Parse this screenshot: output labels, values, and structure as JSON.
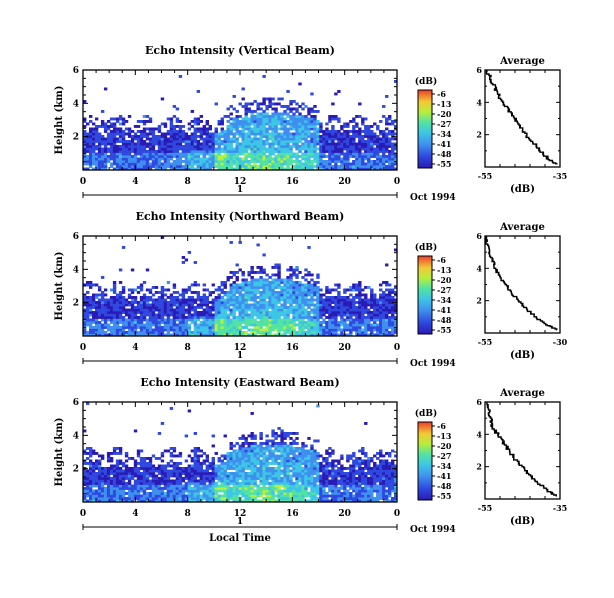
{
  "chart_data": [
    {
      "type": "heatmap",
      "title": "Echo Intensity (Vertical Beam)",
      "ylabel": "Height (km)",
      "x_ticks": [
        "0",
        "4",
        "8",
        "12",
        "16",
        "20",
        "0"
      ],
      "y_ticks": [
        "6",
        "4",
        "2"
      ],
      "date_marker": "1",
      "date_label": "Oct 1994",
      "ylim": [
        0,
        6
      ],
      "xlim": [
        0,
        24
      ],
      "colorbar": {
        "label": "(dB)",
        "ticks": [
          "-6",
          "-13",
          "-20",
          "-27",
          "-34",
          "-41",
          "-48",
          "-55"
        ],
        "range": [
          -55,
          -6
        ]
      },
      "profile": {
        "title": "Average",
        "xlabel": "(dB)",
        "x_ticks": [
          "-55",
          "-35"
        ],
        "y_ticks": [
          "6",
          "4",
          "2"
        ],
        "xlim": [
          -55,
          -35
        ],
        "heights": [
          0.2,
          0.5,
          1.0,
          1.5,
          2.0,
          2.5,
          3.0,
          3.5,
          4.0,
          4.5,
          5.0,
          5.5,
          6.0
        ],
        "values": [
          -36,
          -38,
          -40,
          -42,
          -44,
          -45.5,
          -47,
          -48.5,
          -50,
          -51.5,
          -52.5,
          -53.5,
          -54.5
        ]
      }
    },
    {
      "type": "heatmap",
      "title": "Echo Intensity (Northward Beam)",
      "ylabel": "Height (km)",
      "x_ticks": [
        "0",
        "4",
        "8",
        "12",
        "16",
        "20",
        "0"
      ],
      "y_ticks": [
        "6",
        "4",
        "2"
      ],
      "date_marker": "1",
      "date_label": "Oct 1994",
      "ylim": [
        0,
        6
      ],
      "xlim": [
        0,
        24
      ],
      "colorbar": {
        "label": "(dB)",
        "ticks": [
          "-6",
          "-13",
          "-20",
          "-27",
          "-34",
          "-41",
          "-48",
          "-55"
        ],
        "range": [
          -55,
          -6
        ]
      },
      "profile": {
        "title": "Average",
        "xlabel": "(dB)",
        "x_ticks": [
          "-55",
          "-30"
        ],
        "y_ticks": [
          "6",
          "4",
          "2"
        ],
        "xlim": [
          -55,
          -30
        ],
        "heights": [
          0.2,
          0.5,
          1.0,
          1.5,
          2.0,
          2.5,
          3.0,
          3.5,
          4.0,
          4.5,
          5.0,
          5.5,
          6.0
        ],
        "values": [
          -31,
          -34,
          -38,
          -41,
          -43.5,
          -46,
          -48,
          -50,
          -51.5,
          -52.5,
          -53.5,
          -54.2,
          -54.8
        ]
      }
    },
    {
      "type": "heatmap",
      "title": "Echo Intensity (Eastward Beam)",
      "ylabel": "Height (km)",
      "xlabel": "Local Time",
      "x_ticks": [
        "0",
        "4",
        "8",
        "12",
        "16",
        "20",
        "0"
      ],
      "y_ticks": [
        "6",
        "4",
        "2"
      ],
      "date_marker": "1",
      "date_label": "Oct 1994",
      "ylim": [
        0,
        6
      ],
      "xlim": [
        0,
        24
      ],
      "colorbar": {
        "label": "(dB)",
        "ticks": [
          "-6",
          "-13",
          "-20",
          "-27",
          "-34",
          "-41",
          "-48",
          "-55"
        ],
        "range": [
          -55,
          -6
        ]
      },
      "profile": {
        "title": "Average",
        "xlabel": "(dB)",
        "x_ticks": [
          "-55",
          "-35"
        ],
        "y_ticks": [
          "6",
          "4",
          "2"
        ],
        "xlim": [
          -55,
          -35
        ],
        "heights": [
          0.2,
          0.5,
          1.0,
          1.5,
          2.0,
          2.5,
          3.0,
          3.5,
          4.0,
          4.5,
          5.0,
          5.5,
          6.0
        ],
        "values": [
          -36,
          -38,
          -40.5,
          -43,
          -45,
          -47,
          -48.5,
          -50,
          -51.5,
          -53,
          -53.5,
          -54,
          -54.5
        ]
      }
    }
  ]
}
